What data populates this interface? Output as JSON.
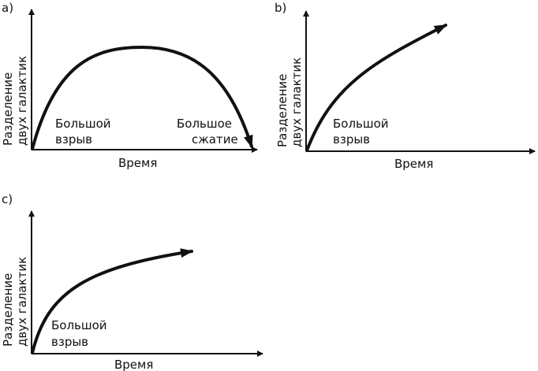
{
  "panels": [
    {
      "id": "a",
      "label": "a)",
      "ylabel_line1": "Разделение",
      "ylabel_line2": "двух галактик",
      "xlabel": "Время",
      "start_label_line1": "Большой",
      "start_label_line2": "взрыв",
      "end_label_line1": "Большое",
      "end_label_line2": "сжатие",
      "curve_shape": "rise-and-fall (ends in collapse)"
    },
    {
      "id": "b",
      "label": "b)",
      "ylabel_line1": "Разделение",
      "ylabel_line2": "двух галактик",
      "xlabel": "Время",
      "start_label_line1": "Большой",
      "start_label_line2": "взрыв",
      "curve_shape": "steady expansion (arrow continues upward)"
    },
    {
      "id": "c",
      "label": "c)",
      "ylabel_line1": "Разделение",
      "ylabel_line2": "двух галактик",
      "xlabel": "Время",
      "start_label_line1": "Большой",
      "start_label_line2": "взрыв",
      "curve_shape": "decelerating expansion (arrow flattens)"
    }
  ],
  "colors": {
    "ink": "#111111",
    "background": "#ffffff"
  }
}
